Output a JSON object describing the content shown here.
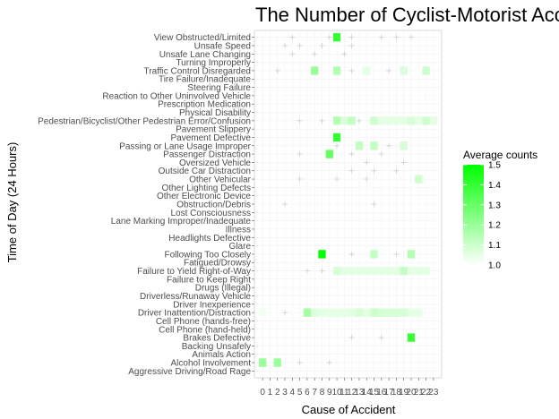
{
  "chart_data": {
    "type": "heatmap",
    "title": "The Number of Cyclist-Motorist Accidents",
    "xlabel": "Cause of Accident",
    "ylabel": "Time of Day (24 Hours)",
    "x_categories": [
      "0",
      "1",
      "2",
      "3",
      "4",
      "5",
      "6",
      "7",
      "8",
      "9",
      "10",
      "11",
      "12",
      "13",
      "14",
      "15",
      "16",
      "17",
      "18",
      "19",
      "20",
      "21",
      "22",
      "23"
    ],
    "y_categories": [
      "Aggressive Driving/Road Rage",
      "Alcohol Involvement",
      "Animals Action",
      "Backing Unsafely",
      "Brakes Defective",
      "Cell Phone (hand-held)",
      "Cell Phone (hands-free)",
      "Driver Inattention/Distraction",
      "Driver Inexperience",
      "Driverless/Runaway Vehicle",
      "Drugs (Illegal)",
      "Failure to Keep Right",
      "Failure to Yield Right-of-Way",
      "Fatigued/Drowsy",
      "Following Too Closely",
      "Glare",
      "Headlights Defective",
      "Illness",
      "Lane Marking Improper/Inadequate",
      "Lost Consciousness",
      "Obstruction/Debris",
      "Other Electronic Device",
      "Other Lighting Defects",
      "Other Vehicular",
      "Outside Car Distraction",
      "Oversized Vehicle",
      "Passenger Distraction",
      "Passing or Lane Usage Improper",
      "Pavement Defective",
      "Pavement Slippery",
      "Pedestrian/Bicyclist/Other Pedestrian Error/Confusion",
      "Physical Disability",
      "Prescription Medication",
      "Reaction to Other Uninvolved Vehicle",
      "Steering Failure",
      "Tire Failure/Inadequate",
      "Traffic Control Disregarded",
      "Turning Improperly",
      "Unsafe Lane Changing",
      "Unsafe Speed",
      "View Obstructed/Limited"
    ],
    "cells": [
      {
        "y": "View Obstructed/Limited",
        "x": "10",
        "value": 1.4
      },
      {
        "y": "Traffic Control Disregarded",
        "x": "7",
        "value": 1.2
      },
      {
        "y": "Traffic Control Disregarded",
        "x": "10",
        "value": 1.15
      },
      {
        "y": "Traffic Control Disregarded",
        "x": "14",
        "value": 1.05
      },
      {
        "y": "Traffic Control Disregarded",
        "x": "19",
        "value": 1.07
      },
      {
        "y": "Traffic Control Disregarded",
        "x": "22",
        "value": 1.1
      },
      {
        "y": "Pedestrian/Bicyclist/Other Pedestrian Error/Confusion",
        "x": "10",
        "value": 1.15
      },
      {
        "y": "Pedestrian/Bicyclist/Other Pedestrian Error/Confusion",
        "x": "11",
        "value": 1.07
      },
      {
        "y": "Pedestrian/Bicyclist/Other Pedestrian Error/Confusion",
        "x": "12",
        "value": 1.12
      },
      {
        "y": "Pedestrian/Bicyclist/Other Pedestrian Error/Confusion",
        "x": "15",
        "value": 1.1
      },
      {
        "y": "Pedestrian/Bicyclist/Other Pedestrian Error/Confusion",
        "x": "16",
        "value": 1.05
      },
      {
        "y": "Pedestrian/Bicyclist/Other Pedestrian Error/Confusion",
        "x": "17",
        "value": 1.05
      },
      {
        "y": "Pedestrian/Bicyclist/Other Pedestrian Error/Confusion",
        "x": "18",
        "value": 1.05
      },
      {
        "y": "Pedestrian/Bicyclist/Other Pedestrian Error/Confusion",
        "x": "19",
        "value": 1.05
      },
      {
        "y": "Pedestrian/Bicyclist/Other Pedestrian Error/Confusion",
        "x": "20",
        "value": 1.08
      },
      {
        "y": "Pedestrian/Bicyclist/Other Pedestrian Error/Confusion",
        "x": "21",
        "value": 1.05
      },
      {
        "y": "Pedestrian/Bicyclist/Other Pedestrian Error/Confusion",
        "x": "22",
        "value": 1.1
      },
      {
        "y": "Pedestrian/Bicyclist/Other Pedestrian Error/Confusion",
        "x": "23",
        "value": 1.05
      },
      {
        "y": "Pavement Defective",
        "x": "10",
        "value": 1.4
      },
      {
        "y": "Passing or Lane Usage Improper",
        "x": "13",
        "value": 1.12
      },
      {
        "y": "Passing or Lane Usage Improper",
        "x": "15",
        "value": 1.12
      },
      {
        "y": "Passing or Lane Usage Improper",
        "x": "19",
        "value": 1.08
      },
      {
        "y": "Passenger Distraction",
        "x": "9",
        "value": 1.3
      },
      {
        "y": "Other Vehicular",
        "x": "21",
        "value": 1.1
      },
      {
        "y": "Following Too Closely",
        "x": "8",
        "value": 1.5
      },
      {
        "y": "Following Too Closely",
        "x": "15",
        "value": 1.12
      },
      {
        "y": "Following Too Closely",
        "x": "20",
        "value": 1.15
      },
      {
        "y": "Failure to Yield Right-of-Way",
        "x": "10",
        "value": 1.08
      },
      {
        "y": "Failure to Yield Right-of-Way",
        "x": "11",
        "value": 1.05
      },
      {
        "y": "Failure to Yield Right-of-Way",
        "x": "12",
        "value": 1.05
      },
      {
        "y": "Failure to Yield Right-of-Way",
        "x": "13",
        "value": 1.05
      },
      {
        "y": "Failure to Yield Right-of-Way",
        "x": "14",
        "value": 1.05
      },
      {
        "y": "Failure to Yield Right-of-Way",
        "x": "15",
        "value": 1.05
      },
      {
        "y": "Failure to Yield Right-of-Way",
        "x": "16",
        "value": 1.05
      },
      {
        "y": "Failure to Yield Right-of-Way",
        "x": "17",
        "value": 1.05
      },
      {
        "y": "Failure to Yield Right-of-Way",
        "x": "18",
        "value": 1.05
      },
      {
        "y": "Failure to Yield Right-of-Way",
        "x": "19",
        "value": 1.12
      },
      {
        "y": "Failure to Yield Right-of-Way",
        "x": "20",
        "value": 1.05
      },
      {
        "y": "Failure to Yield Right-of-Way",
        "x": "21",
        "value": 1.05
      },
      {
        "y": "Failure to Yield Right-of-Way",
        "x": "22",
        "value": 1.05
      },
      {
        "y": "Driver Inattention/Distraction",
        "x": "0",
        "value": 1.03
      },
      {
        "y": "Driver Inattention/Distraction",
        "x": "6",
        "value": 1.18
      },
      {
        "y": "Driver Inattention/Distraction",
        "x": "7",
        "value": 1.07
      },
      {
        "y": "Driver Inattention/Distraction",
        "x": "8",
        "value": 1.05
      },
      {
        "y": "Driver Inattention/Distraction",
        "x": "9",
        "value": 1.05
      },
      {
        "y": "Driver Inattention/Distraction",
        "x": "10",
        "value": 1.05
      },
      {
        "y": "Driver Inattention/Distraction",
        "x": "11",
        "value": 1.05
      },
      {
        "y": "Driver Inattention/Distraction",
        "x": "12",
        "value": 1.05
      },
      {
        "y": "Driver Inattention/Distraction",
        "x": "13",
        "value": 1.08
      },
      {
        "y": "Driver Inattention/Distraction",
        "x": "14",
        "value": 1.05
      },
      {
        "y": "Driver Inattention/Distraction",
        "x": "15",
        "value": 1.1
      },
      {
        "y": "Driver Inattention/Distraction",
        "x": "16",
        "value": 1.08
      },
      {
        "y": "Driver Inattention/Distraction",
        "x": "17",
        "value": 1.08
      },
      {
        "y": "Driver Inattention/Distraction",
        "x": "18",
        "value": 1.08
      },
      {
        "y": "Driver Inattention/Distraction",
        "x": "19",
        "value": 1.08
      },
      {
        "y": "Driver Inattention/Distraction",
        "x": "20",
        "value": 1.05
      },
      {
        "y": "Driver Inattention/Distraction",
        "x": "21",
        "value": 1.05
      },
      {
        "y": "Brakes Defective",
        "x": "20",
        "value": 1.4
      },
      {
        "y": "Alcohol Involvement",
        "x": "0",
        "value": 1.2
      },
      {
        "y": "Alcohol Involvement",
        "x": "2",
        "value": 1.2
      }
    ],
    "empty_marker_cells": [
      {
        "y": "View Obstructed/Limited",
        "x": "4"
      },
      {
        "y": "View Obstructed/Limited",
        "x": "9"
      },
      {
        "y": "View Obstructed/Limited",
        "x": "12"
      },
      {
        "y": "View Obstructed/Limited",
        "x": "16"
      },
      {
        "y": "View Obstructed/Limited",
        "x": "18"
      },
      {
        "y": "View Obstructed/Limited",
        "x": "20"
      },
      {
        "y": "Unsafe Speed",
        "x": "3"
      },
      {
        "y": "Unsafe Speed",
        "x": "5"
      },
      {
        "y": "Unsafe Speed",
        "x": "8"
      },
      {
        "y": "Unsafe Speed",
        "x": "12"
      },
      {
        "y": "Unsafe Lane Changing",
        "x": "4"
      },
      {
        "y": "Unsafe Lane Changing",
        "x": "7"
      },
      {
        "y": "Unsafe Lane Changing",
        "x": "11"
      },
      {
        "y": "Traffic Control Disregarded",
        "x": "2"
      },
      {
        "y": "Traffic Control Disregarded",
        "x": "12"
      },
      {
        "y": "Traffic Control Disregarded",
        "x": "17"
      },
      {
        "y": "Pedestrian/Bicyclist/Other Pedestrian Error/Confusion",
        "x": "5"
      },
      {
        "y": "Pedestrian/Bicyclist/Other Pedestrian Error/Confusion",
        "x": "8"
      },
      {
        "y": "Pedestrian/Bicyclist/Other Pedestrian Error/Confusion",
        "x": "13"
      },
      {
        "y": "Passing or Lane Usage Improper",
        "x": "10"
      },
      {
        "y": "Passing or Lane Usage Improper",
        "x": "17"
      },
      {
        "y": "Passenger Distraction",
        "x": "5"
      },
      {
        "y": "Passenger Distraction",
        "x": "12"
      },
      {
        "y": "Passenger Distraction",
        "x": "16"
      },
      {
        "y": "Oversized Vehicle",
        "x": "14"
      },
      {
        "y": "Oversized Vehicle",
        "x": "19"
      },
      {
        "y": "Outside Car Distraction",
        "x": "12"
      },
      {
        "y": "Outside Car Distraction",
        "x": "15"
      },
      {
        "y": "Outside Car Distraction",
        "x": "18"
      },
      {
        "y": "Other Vehicular",
        "x": "5"
      },
      {
        "y": "Other Vehicular",
        "x": "10"
      },
      {
        "y": "Other Vehicular",
        "x": "14"
      },
      {
        "y": "Obstruction/Debris",
        "x": "3"
      },
      {
        "y": "Obstruction/Debris",
        "x": "15"
      },
      {
        "y": "Following Too Closely",
        "x": "12"
      },
      {
        "y": "Following Too Closely",
        "x": "18"
      },
      {
        "y": "Failure to Yield Right-of-Way",
        "x": "6"
      },
      {
        "y": "Failure to Yield Right-of-Way",
        "x": "8"
      },
      {
        "y": "Driver Inattention/Distraction",
        "x": "3"
      },
      {
        "y": "Brakes Defective",
        "x": "12"
      },
      {
        "y": "Brakes Defective",
        "x": "16"
      },
      {
        "y": "Alcohol Involvement",
        "x": "5"
      },
      {
        "y": "Alcohol Involvement",
        "x": "9"
      }
    ],
    "legend": {
      "title": "Average counts",
      "min": 1.0,
      "max": 1.5,
      "ticks": [
        "1.0",
        "1.1",
        "1.2",
        "1.3",
        "1.4",
        "1.5"
      ],
      "low_color": "#ffffff",
      "high_color": "#00ff00",
      "placement": "right"
    },
    "colors": {
      "grid_line": "#d9d9d9",
      "panel_border": "#d0d0d0",
      "empty_marker": "#cccccc"
    }
  }
}
